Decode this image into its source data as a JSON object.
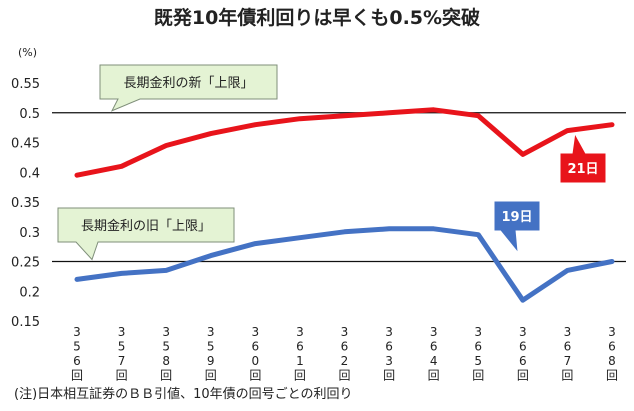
{
  "chart_data": {
    "type": "line",
    "title": "既発10年債利回りは早くも0.5%突破",
    "y_unit": "(%)",
    "yticks": [
      "0.55",
      "0.5",
      "0.45",
      "0.4",
      "0.35",
      "0.3",
      "0.25",
      "0.2",
      "0.15"
    ],
    "ylim": [
      0.15,
      0.55
    ],
    "categories": [
      "356回",
      "357回",
      "358回",
      "359回",
      "360回",
      "361回",
      "362回",
      "363回",
      "364回",
      "365回",
      "366回",
      "367回",
      "368回"
    ],
    "series": [
      {
        "name": "21日",
        "color": "#e8141b",
        "values": [
          0.395,
          0.41,
          0.445,
          0.465,
          0.48,
          0.49,
          0.495,
          0.5,
          0.505,
          0.495,
          0.43,
          0.47,
          0.48
        ]
      },
      {
        "name": "19日",
        "color": "#4472c4",
        "values": [
          0.22,
          0.23,
          0.235,
          0.26,
          0.28,
          0.29,
          0.3,
          0.305,
          0.305,
          0.295,
          0.185,
          0.235,
          0.25
        ]
      }
    ],
    "reference_lines": [
      {
        "value": 0.5,
        "label": "長期金利の新「上限」"
      },
      {
        "value": 0.25,
        "label": "長期金利の旧「上限」"
      }
    ],
    "note": "(注)日本相互証券のＢＢ引値、10年債の回号ごとの利回り"
  }
}
